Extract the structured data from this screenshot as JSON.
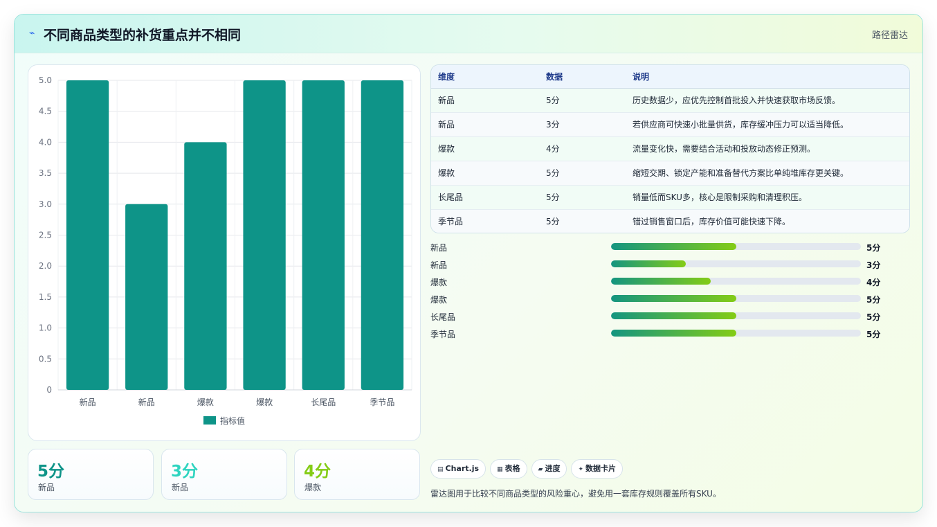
{
  "header": {
    "icon": "lightning-icon",
    "title": "不同商品类型的补货重点并不相同",
    "nav_label": "路径雷达"
  },
  "chart_data": {
    "type": "bar",
    "categories": [
      "新品",
      "新品",
      "爆款",
      "爆款",
      "长尾品",
      "季节品"
    ],
    "series": [
      {
        "name": "指标值",
        "values": [
          5,
          3,
          4,
          5,
          5,
          5
        ],
        "color": "#0e9488"
      }
    ],
    "ylim": [
      0,
      5
    ],
    "yticks": [
      "0",
      "0.5",
      "1.0",
      "1.5",
      "2.0",
      "2.5",
      "3.0",
      "3.5",
      "4.0",
      "4.5",
      "5.0"
    ],
    "grid": true,
    "legend": "bottom"
  },
  "stats": [
    {
      "value": "5分",
      "label": "新品",
      "color": "#0e9488"
    },
    {
      "value": "3分",
      "label": "新品",
      "color": "#2dd4bf"
    },
    {
      "value": "4分",
      "label": "爆款",
      "color": "#84cc16"
    }
  ],
  "table": {
    "headers": [
      "维度",
      "数据",
      "说明"
    ],
    "rows": [
      [
        "新品",
        "5分",
        "历史数据少，应优先控制首批投入并快速获取市场反馈。"
      ],
      [
        "新品",
        "3分",
        "若供应商可快速小批量供货，库存缓冲压力可以适当降低。"
      ],
      [
        "爆款",
        "4分",
        "流量变化快，需要结合活动和投放动态修正预测。"
      ],
      [
        "爆款",
        "5分",
        "缩短交期、锁定产能和准备替代方案比单纯堆库存更关键。"
      ],
      [
        "长尾品",
        "5分",
        "销量低而SKU多，核心是限制采购和清理积压。"
      ],
      [
        "季节品",
        "5分",
        "错过销售窗口后，库存价值可能快速下降。"
      ]
    ]
  },
  "progress": {
    "max": 10,
    "items": [
      {
        "label": "新品",
        "value": 5,
        "text": "5分"
      },
      {
        "label": "新品",
        "value": 3,
        "text": "3分"
      },
      {
        "label": "爆款",
        "value": 4,
        "text": "4分"
      },
      {
        "label": "爆款",
        "value": 5,
        "text": "5分"
      },
      {
        "label": "长尾品",
        "value": 5,
        "text": "5分"
      },
      {
        "label": "季节品",
        "value": 5,
        "text": "5分"
      }
    ]
  },
  "chips": [
    {
      "icon": "chart-icon",
      "glyph": "▤",
      "label": "Chart.js"
    },
    {
      "icon": "table-icon",
      "glyph": "▦",
      "label": "表格"
    },
    {
      "icon": "progress-icon",
      "glyph": "▰",
      "label": "进度"
    },
    {
      "icon": "sparkle-icon",
      "glyph": "✦",
      "label": "数据卡片"
    }
  ],
  "footnote": "雷达图用于比较不同商品类型的风险重心，避免用一套库存规则覆盖所有SKU。"
}
